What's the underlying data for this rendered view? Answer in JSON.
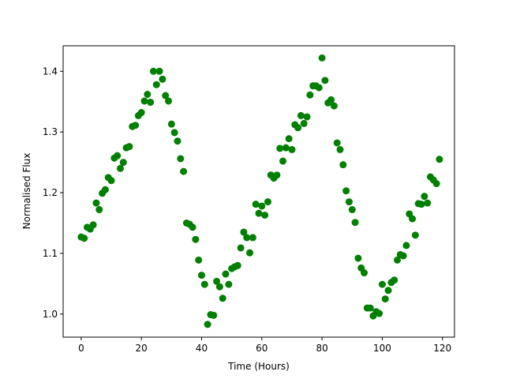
{
  "chart_data": {
    "type": "scatter",
    "xlabel": "Time (Hours)",
    "ylabel": "Normalised Flux",
    "xlim": [
      -6,
      124
    ],
    "ylim": [
      0.962,
      1.442
    ],
    "xticks": [
      0,
      20,
      40,
      60,
      80,
      100,
      120
    ],
    "yticks": [
      1.0,
      1.1,
      1.2,
      1.3,
      1.4
    ],
    "ytick_labels": [
      "1.0",
      "1.1",
      "1.2",
      "1.3",
      "1.4"
    ],
    "grid": false,
    "marker_color": "#008000",
    "x": [
      0,
      1,
      2,
      3,
      4,
      5,
      6,
      7,
      8,
      9,
      10,
      11,
      12,
      13,
      14,
      15,
      16,
      17,
      18,
      19,
      20,
      21,
      22,
      23,
      24,
      25,
      26,
      27,
      28,
      29,
      30,
      31,
      32,
      33,
      34,
      35,
      36,
      37,
      38,
      39,
      40,
      41,
      42,
      43,
      44,
      45,
      46,
      47,
      48,
      49,
      50,
      51,
      52,
      53,
      54,
      55,
      56,
      57,
      58,
      59,
      60,
      61,
      62,
      63,
      64,
      65,
      66,
      67,
      68,
      69,
      70,
      71,
      72,
      73,
      74,
      75,
      76,
      77,
      78,
      79,
      80,
      81,
      82,
      83,
      84,
      85,
      86,
      87,
      88,
      89,
      90,
      91,
      92,
      93,
      94,
      95,
      96,
      97,
      98,
      99,
      100,
      101,
      102,
      103,
      104,
      105,
      106,
      107,
      108,
      109,
      110,
      111,
      112,
      113,
      114,
      115,
      116,
      117,
      118,
      119
    ],
    "y": [
      1.127,
      1.125,
      1.143,
      1.14,
      1.147,
      1.183,
      1.172,
      1.199,
      1.205,
      1.225,
      1.22,
      1.257,
      1.261,
      1.24,
      1.25,
      1.274,
      1.276,
      1.309,
      1.311,
      1.327,
      1.332,
      1.351,
      1.362,
      1.349,
      1.4,
      1.378,
      1.4,
      1.387,
      1.36,
      1.351,
      1.313,
      1.299,
      1.285,
      1.256,
      1.235,
      1.15,
      1.148,
      1.143,
      1.123,
      1.089,
      1.064,
      1.049,
      0.983,
      0.999,
      0.998,
      1.054,
      1.045,
      1.026,
      1.066,
      1.049,
      1.075,
      1.078,
      1.08,
      1.109,
      1.135,
      1.126,
      1.101,
      1.126,
      1.181,
      1.166,
      1.178,
      1.163,
      1.185,
      1.229,
      1.224,
      1.229,
      1.273,
      1.252,
      1.274,
      1.289,
      1.271,
      1.312,
      1.307,
      1.327,
      1.314,
      1.325,
      1.361,
      1.376,
      1.376,
      1.373,
      1.422,
      1.385,
      1.348,
      1.353,
      1.343,
      1.282,
      1.271,
      1.246,
      1.203,
      1.185,
      1.172,
      1.151,
      1.092,
      1.076,
      1.068,
      1.01,
      1.01,
      0.997,
      1.004,
      1.001,
      1.049,
      1.025,
      1.039,
      1.052,
      1.056,
      1.089,
      1.098,
      1.096,
      1.113,
      1.165,
      1.157,
      1.13,
      1.182,
      1.181,
      1.194,
      1.183,
      1.226,
      1.221,
      1.215,
      1.255
    ]
  }
}
